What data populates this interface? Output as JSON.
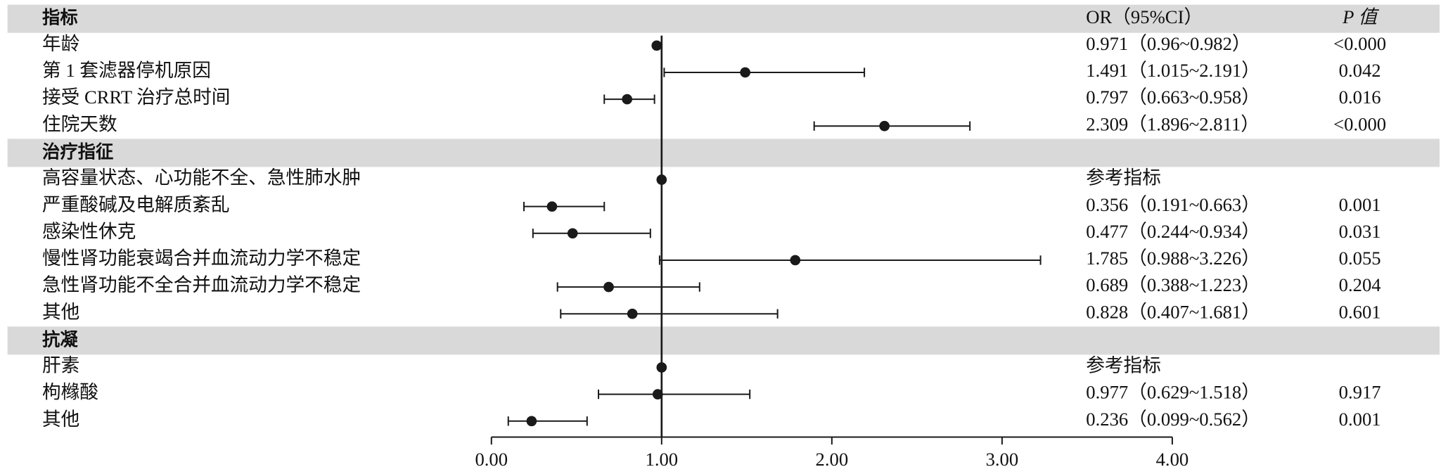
{
  "chart_data": {
    "type": "forest",
    "header": {
      "label": "指标",
      "or": "OR（95%CI）",
      "p": "P 值"
    },
    "rows": [
      {
        "label": "年龄",
        "or": 0.971,
        "lower": 0.96,
        "upper": 0.982,
        "or_label": "0.971（0.96~0.982）",
        "p": "<0.000"
      },
      {
        "label": "第 1 套滤器停机原因",
        "or": 1.491,
        "lower": 1.015,
        "upper": 2.191,
        "or_label": "1.491（1.015~2.191）",
        "p": "0.042"
      },
      {
        "label": "接受 CRRT 治疗总时间",
        "or": 0.797,
        "lower": 0.663,
        "upper": 0.958,
        "or_label": "0.797（0.663~0.958）",
        "p": "0.016"
      },
      {
        "label": "住院天数",
        "or": 2.309,
        "lower": 1.896,
        "upper": 2.811,
        "or_label": "2.309（1.896~2.811）",
        "p": "<0.000"
      },
      {
        "group": "治疗指征"
      },
      {
        "label": "高容量状态、心功能不全、急性肺水肿",
        "or": 1,
        "or_label": "参考指标"
      },
      {
        "label": "严重酸碱及电解质紊乱",
        "or": 0.356,
        "lower": 0.191,
        "upper": 0.663,
        "or_label": "0.356（0.191~0.663）",
        "p": "0.001"
      },
      {
        "label": "感染性休克",
        "or": 0.477,
        "lower": 0.244,
        "upper": 0.934,
        "or_label": "0.477（0.244~0.934）",
        "p": "0.031"
      },
      {
        "label": "慢性肾功能衰竭合并血流动力学不稳定",
        "or": 1.785,
        "lower": 0.988,
        "upper": 3.226,
        "or_label": "1.785（0.988~3.226）",
        "p": "0.055"
      },
      {
        "label": "急性肾功能不全合并血流动力学不稳定",
        "or": 0.689,
        "lower": 0.388,
        "upper": 1.223,
        "or_label": "0.689（0.388~1.223）",
        "p": "0.204"
      },
      {
        "label": "其他",
        "or": 0.828,
        "lower": 0.407,
        "upper": 1.681,
        "or_label": "0.828（0.407~1.681）",
        "p": "0.601"
      },
      {
        "group": "抗凝"
      },
      {
        "label": "肝素",
        "or": 1,
        "or_label": "参考指标"
      },
      {
        "label": "枸橼酸",
        "or": 0.977,
        "lower": 0.629,
        "upper": 1.518,
        "or_label": "0.977（0.629~1.518）",
        "p": "0.917"
      },
      {
        "label": "其他",
        "or": 0.236,
        "lower": 0.099,
        "upper": 0.562,
        "or_label": "0.236（0.099~0.562）",
        "p": "0.001"
      }
    ],
    "reference": 1,
    "xlim": [
      0,
      4
    ],
    "xticks": [
      {
        "value": 0,
        "label": "0.00"
      },
      {
        "value": 1,
        "label": "1.00"
      },
      {
        "value": 2,
        "label": "2.00"
      },
      {
        "value": 3,
        "label": "3.00"
      },
      {
        "value": 4,
        "label": "4.00"
      }
    ],
    "color": "#1a1a1a",
    "band_color": "#d9d9d9"
  }
}
